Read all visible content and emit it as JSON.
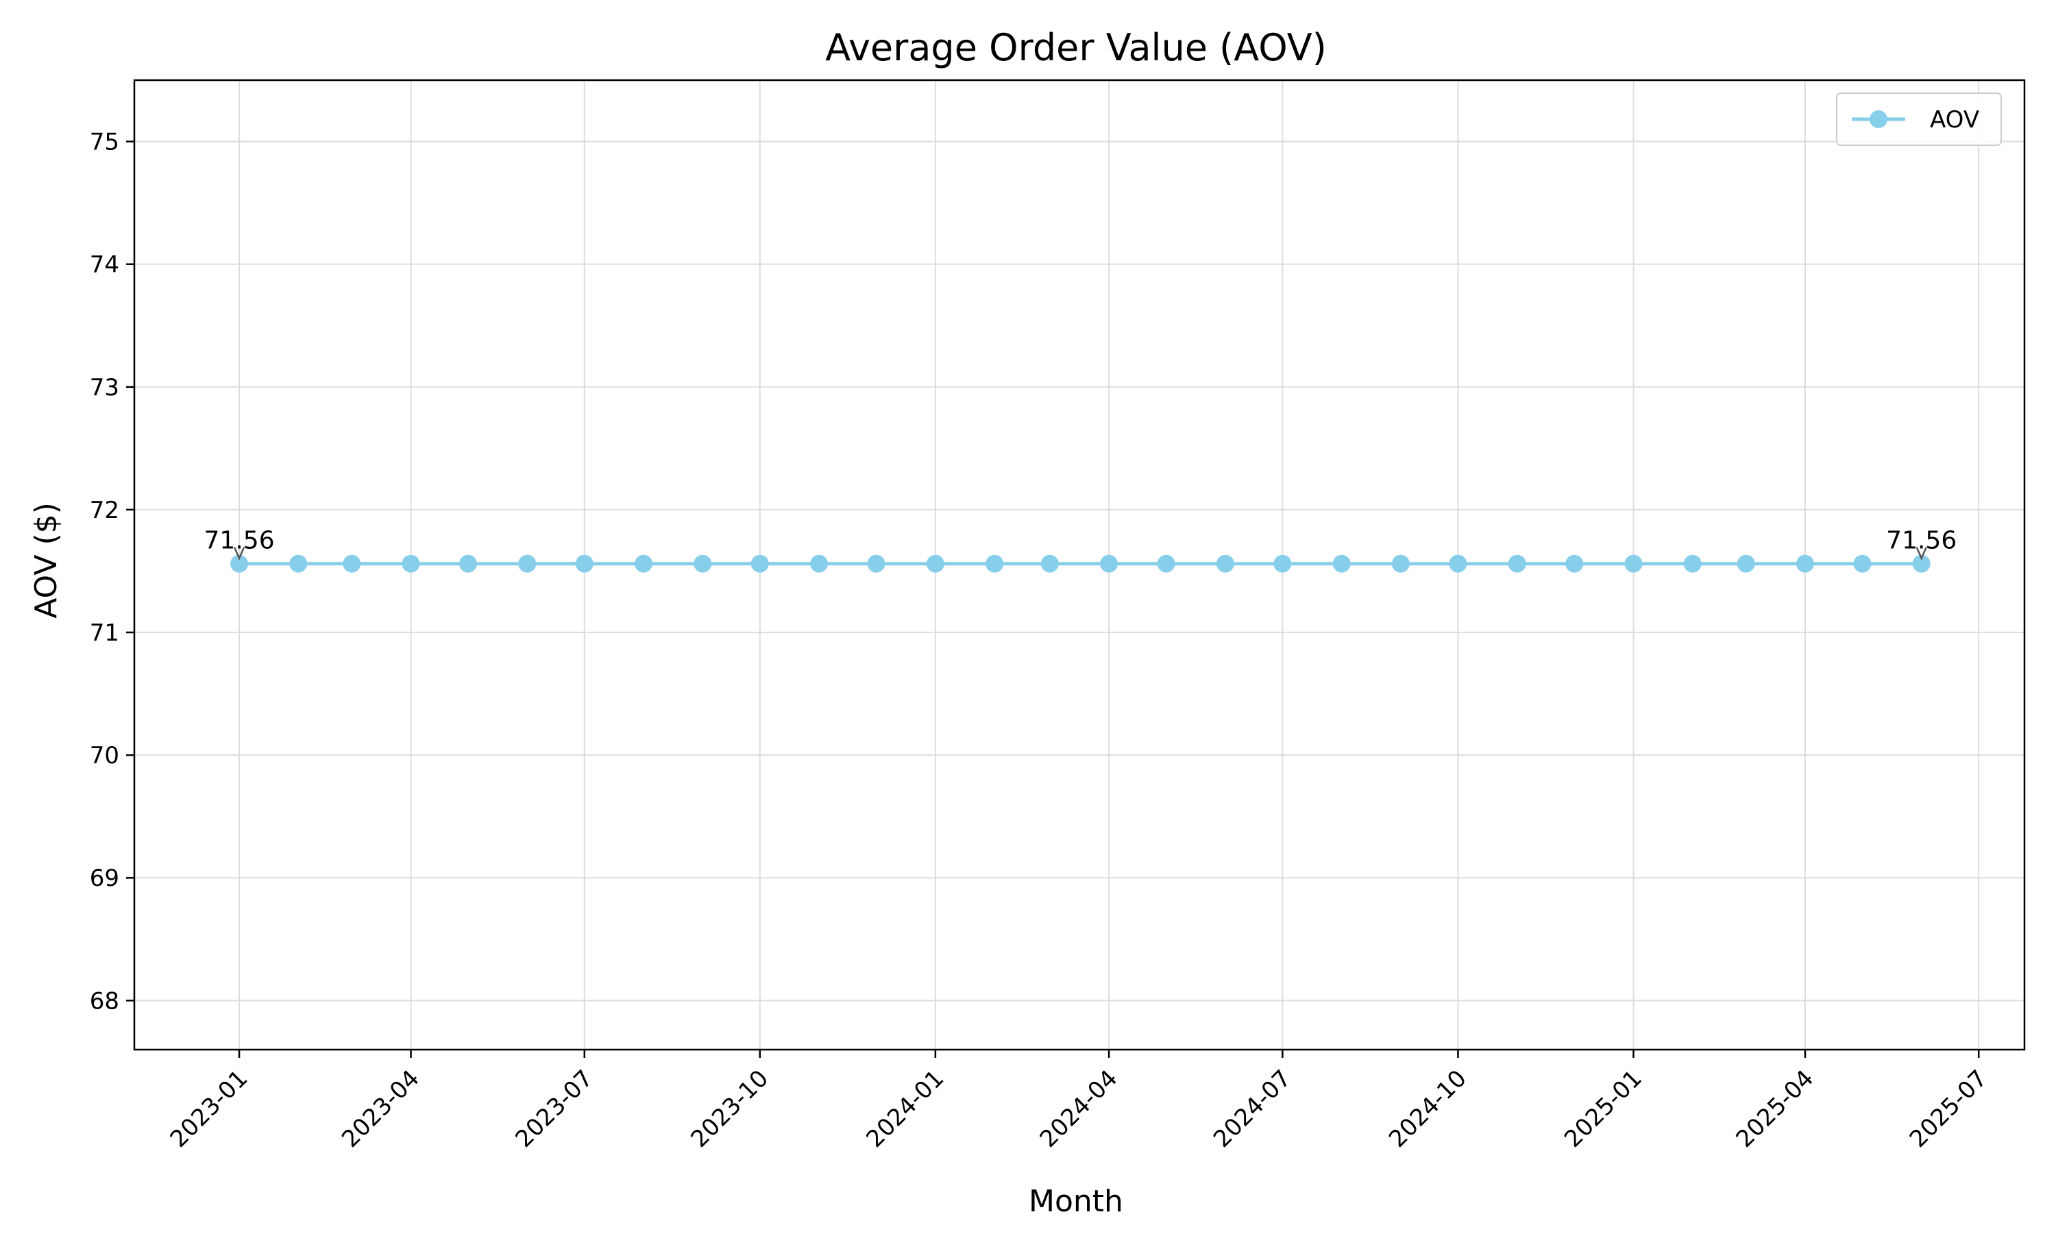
{
  "chart_data": {
    "type": "line",
    "title": "Average Order Value (AOV)",
    "xlabel": "Month",
    "ylabel": "AOV ($)",
    "x_axis_type": "date",
    "xlim": [
      "2022-11-07",
      "2025-07-25"
    ],
    "ylim": [
      67.6,
      75.5
    ],
    "y_ticks": [
      68,
      69,
      70,
      71,
      72,
      73,
      74,
      75
    ],
    "x_ticks": [
      "2023-01",
      "2023-04",
      "2023-07",
      "2023-10",
      "2024-01",
      "2024-04",
      "2024-07",
      "2024-10",
      "2025-01",
      "2025-04",
      "2025-07"
    ],
    "grid": true,
    "legend_position": "top-right",
    "series": [
      {
        "name": "AOV",
        "color": "#87ceeb",
        "marker": "circle",
        "x": [
          "2023-01-01",
          "2023-02-01",
          "2023-03-01",
          "2023-04-01",
          "2023-05-01",
          "2023-06-01",
          "2023-07-01",
          "2023-08-01",
          "2023-09-01",
          "2023-10-01",
          "2023-11-01",
          "2023-12-01",
          "2024-01-01",
          "2024-02-01",
          "2024-03-01",
          "2024-04-01",
          "2024-05-01",
          "2024-06-01",
          "2024-07-01",
          "2024-08-01",
          "2024-09-01",
          "2024-10-01",
          "2024-11-01",
          "2024-12-01",
          "2025-01-01",
          "2025-02-01",
          "2025-03-01",
          "2025-04-01",
          "2025-05-01",
          "2025-06-01"
        ],
        "values": [
          71.56,
          71.56,
          71.56,
          71.56,
          71.56,
          71.56,
          71.56,
          71.56,
          71.56,
          71.56,
          71.56,
          71.56,
          71.56,
          71.56,
          71.56,
          71.56,
          71.56,
          71.56,
          71.56,
          71.56,
          71.56,
          71.56,
          71.56,
          71.56,
          71.56,
          71.56,
          71.56,
          71.56,
          71.56,
          71.56
        ]
      }
    ],
    "annotations": [
      {
        "x": "2023-01-01",
        "y": 71.56,
        "text": "71.56"
      },
      {
        "x": "2025-06-01",
        "y": 71.56,
        "text": "71.56"
      }
    ]
  }
}
